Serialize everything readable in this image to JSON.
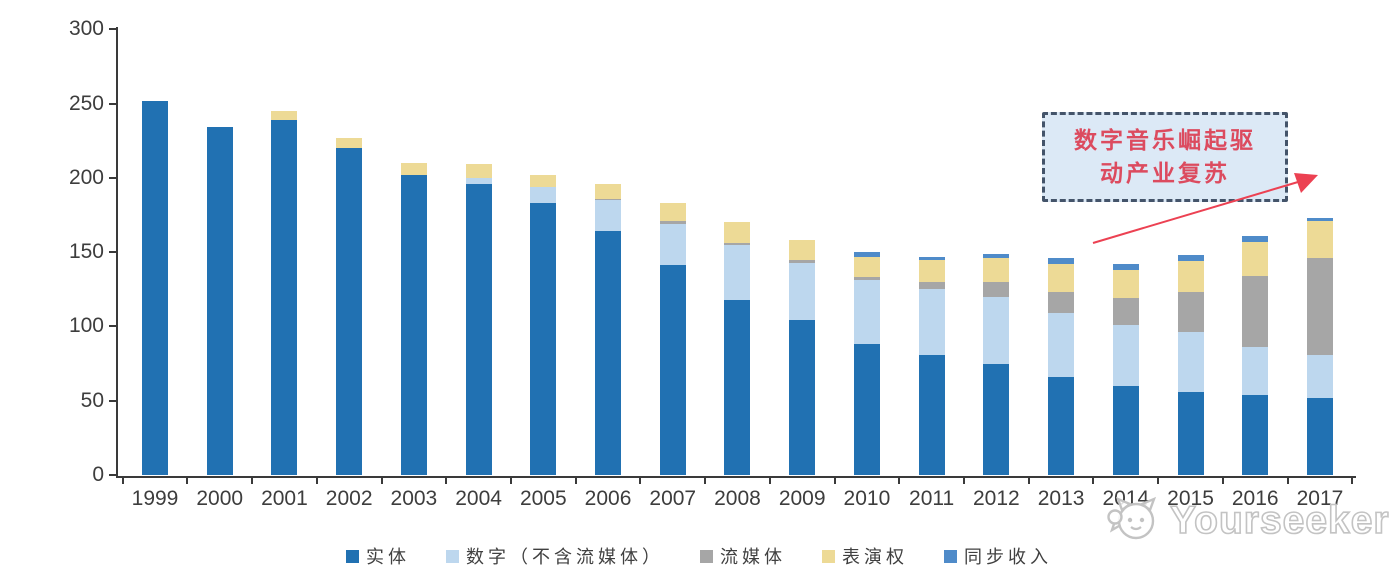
{
  "watermark": {
    "text": "Yourseeker"
  },
  "annotation": {
    "line1": "数字音乐崛起驱",
    "line2": "动产业复苏",
    "text_color": "#dc4b5f",
    "box_fill": "#dce9f6",
    "box_border_color": "#44546a",
    "arrow_color": "#ec4152"
  },
  "chart_data": {
    "type": "bar",
    "stacked": true,
    "grid": false,
    "legend_position": "bottom",
    "ylim": [
      0,
      300
    ],
    "yticks": [
      0,
      50,
      100,
      150,
      200,
      250,
      300
    ],
    "categories": [
      "1999",
      "2000",
      "2001",
      "2002",
      "2003",
      "2004",
      "2005",
      "2006",
      "2007",
      "2008",
      "2009",
      "2010",
      "2011",
      "2012",
      "2013",
      "2014",
      "2015",
      "2016",
      "2017"
    ],
    "series": [
      {
        "id": "physical",
        "name": "实体",
        "color": "#2171b2",
        "values": [
          252,
          234,
          239,
          220,
          202,
          196,
          183,
          164,
          141,
          118,
          104,
          88,
          81,
          75,
          66,
          60,
          56,
          54,
          52
        ]
      },
      {
        "id": "digital-ex-streaming",
        "name": "数字（不含流媒体）",
        "color": "#bdd7ee",
        "values": [
          0,
          0,
          0,
          0,
          0,
          4,
          11,
          21,
          28,
          37,
          39,
          43,
          44,
          45,
          43,
          41,
          40,
          32,
          29
        ]
      },
      {
        "id": "streaming",
        "name": "流媒体",
        "color": "#a6a6a6",
        "values": [
          0,
          0,
          0,
          0,
          0,
          0,
          0,
          1,
          2,
          1,
          2,
          2,
          5,
          10,
          14,
          18,
          27,
          48,
          65
        ]
      },
      {
        "id": "performance-rights",
        "name": "表演权",
        "color": "#edda96",
        "values": [
          0,
          0,
          6,
          7,
          8,
          9,
          8,
          10,
          12,
          14,
          13,
          14,
          15,
          16,
          19,
          19,
          21,
          23,
          25
        ]
      },
      {
        "id": "sync",
        "name": "同步收入",
        "color": "#4f8bc9",
        "values": [
          0,
          0,
          0,
          0,
          0,
          0,
          0,
          0,
          0,
          0,
          0,
          3,
          2,
          3,
          4,
          4,
          4,
          4,
          2
        ]
      }
    ]
  }
}
